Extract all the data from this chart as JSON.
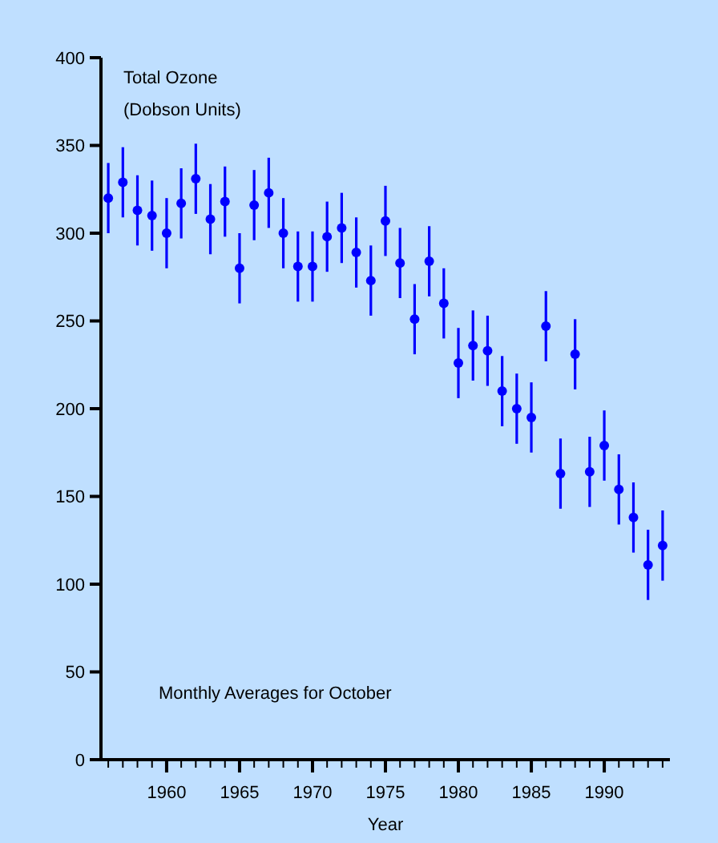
{
  "chart_data": {
    "type": "scatter",
    "xlabel": "Year",
    "ylabel": "Total Ozone (Dobson Units)",
    "annotations": [
      "Monthly Averages for October"
    ],
    "x": [
      1956,
      1957,
      1958,
      1959,
      1960,
      1961,
      1962,
      1963,
      1964,
      1965,
      1966,
      1967,
      1968,
      1969,
      1970,
      1971,
      1972,
      1973,
      1974,
      1975,
      1976,
      1977,
      1978,
      1979,
      1980,
      1981,
      1982,
      1983,
      1984,
      1985,
      1986,
      1987,
      1988,
      1989,
      1990,
      1991,
      1992,
      1993,
      1994
    ],
    "values": [
      320,
      329,
      313,
      310,
      300,
      317,
      331,
      308,
      318,
      280,
      316,
      323,
      300,
      281,
      281,
      298,
      303,
      289,
      273,
      307,
      283,
      251,
      284,
      260,
      226,
      236,
      233,
      210,
      200,
      195,
      247,
      163,
      231,
      164,
      179,
      154,
      138,
      111,
      122
    ],
    "errors": [
      20,
      20,
      20,
      20,
      20,
      20,
      20,
      20,
      20,
      20,
      20,
      20,
      20,
      20,
      20,
      20,
      20,
      20,
      20,
      20,
      20,
      20,
      20,
      20,
      20,
      20,
      20,
      20,
      20,
      20,
      20,
      20,
      20,
      20,
      20,
      20,
      20,
      20,
      20
    ],
    "color": "#0000ff",
    "marker": "circle",
    "grid": false,
    "xlim": [
      1955.5,
      1994.5
    ],
    "ylim": [
      0,
      400
    ],
    "yticks": [
      0,
      50,
      100,
      150,
      200,
      250,
      300,
      350,
      400
    ],
    "xticks": [
      {
        "value": 1956,
        "label": null
      },
      {
        "value": 1957,
        "label": null
      },
      {
        "value": 1958,
        "label": null
      },
      {
        "value": 1959,
        "label": null
      },
      1960,
      {
        "value": 1961,
        "label": null
      },
      {
        "value": 1962,
        "label": null
      },
      {
        "value": 1963,
        "label": null
      },
      {
        "value": 1964,
        "label": null
      },
      1965,
      {
        "value": 1966,
        "label": null
      },
      {
        "value": 1967,
        "label": null
      },
      {
        "value": 1968,
        "label": null
      },
      {
        "value": 1969,
        "label": null
      },
      1970,
      {
        "value": 1971,
        "label": null
      },
      {
        "value": 1972,
        "label": null
      },
      {
        "value": 1973,
        "label": null
      },
      {
        "value": 1974,
        "label": null
      },
      1975,
      {
        "value": 1976,
        "label": null
      },
      {
        "value": 1977,
        "label": null
      },
      {
        "value": 1978,
        "label": null
      },
      {
        "value": 1979,
        "label": null
      },
      1980,
      {
        "value": 1981,
        "label": null
      },
      {
        "value": 1982,
        "label": null
      },
      {
        "value": 1983,
        "label": null
      },
      {
        "value": 1984,
        "label": null
      },
      1985,
      {
        "value": 1986,
        "label": null
      },
      {
        "value": 1987,
        "label": null
      },
      {
        "value": 1988,
        "label": null
      },
      {
        "value": 1989,
        "label": null
      },
      1990,
      {
        "value": 1991,
        "label": null
      },
      {
        "value": 1992,
        "label": null
      },
      {
        "value": 1993,
        "label": null
      },
      {
        "value": 1994,
        "label": null
      }
    ]
  }
}
